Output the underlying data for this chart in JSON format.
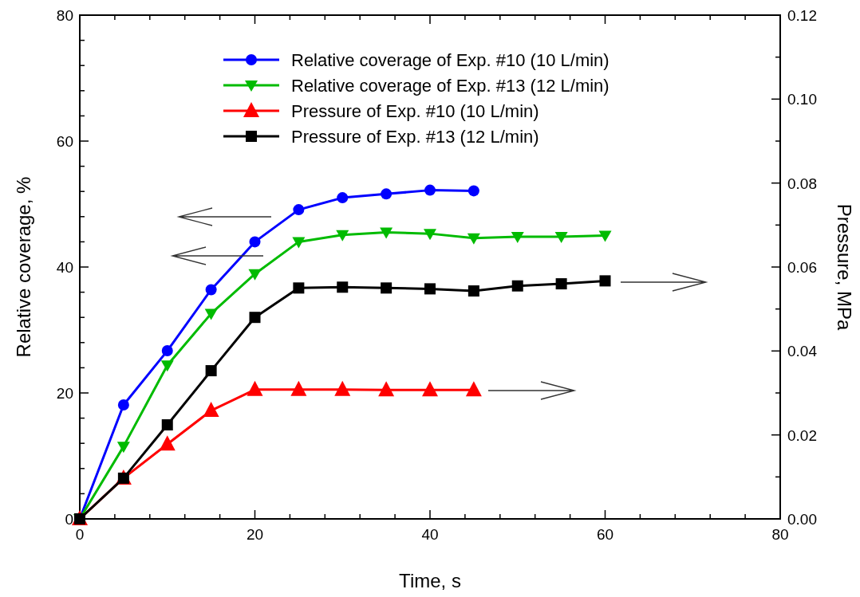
{
  "chart_data": {
    "type": "line",
    "xlabel": "Time, s",
    "ylabel": "Relative coverage, %",
    "y2label": "Pressure, MPa",
    "xlim": [
      0,
      80
    ],
    "xticks": [
      0,
      {
        "value": 4,
        "label": null
      },
      {
        "value": 8,
        "label": null
      },
      {
        "value": 12,
        "label": null
      },
      {
        "value": 16,
        "label": null
      },
      20,
      {
        "value": 24,
        "label": null
      },
      {
        "value": 28,
        "label": null
      },
      {
        "value": 32,
        "label": null
      },
      {
        "value": 36,
        "label": null
      },
      40,
      {
        "value": 44,
        "label": null
      },
      {
        "value": 48,
        "label": null
      },
      {
        "value": 52,
        "label": null
      },
      {
        "value": 56,
        "label": null
      },
      60,
      {
        "value": 64,
        "label": null
      },
      {
        "value": 68,
        "label": null
      },
      {
        "value": 72,
        "label": null
      },
      {
        "value": 76,
        "label": null
      },
      80
    ],
    "ylim": [
      0,
      80
    ],
    "yticks": [
      0,
      {
        "value": 4,
        "label": null
      },
      {
        "value": 8,
        "label": null
      },
      {
        "value": 12,
        "label": null
      },
      {
        "value": 16,
        "label": null
      },
      20,
      {
        "value": 24,
        "label": null
      },
      {
        "value": 28,
        "label": null
      },
      {
        "value": 32,
        "label": null
      },
      {
        "value": 36,
        "label": null
      },
      40,
      {
        "value": 44,
        "label": null
      },
      {
        "value": 48,
        "label": null
      },
      {
        "value": 52,
        "label": null
      },
      {
        "value": 56,
        "label": null
      },
      60,
      {
        "value": 64,
        "label": null
      },
      {
        "value": 68,
        "label": null
      },
      {
        "value": 72,
        "label": null
      },
      {
        "value": 76,
        "label": null
      },
      80
    ],
    "y2lim": [
      0,
      0.12
    ],
    "y2ticks": [
      {
        "value": 0,
        "label": "0.00"
      },
      {
        "value": 0.01,
        "label": null
      },
      {
        "value": 0.02,
        "label": "0.02"
      },
      {
        "value": 0.03,
        "label": null
      },
      {
        "value": 0.04,
        "label": "0.04"
      },
      {
        "value": 0.05,
        "label": null
      },
      {
        "value": 0.06,
        "label": "0.06"
      },
      {
        "value": 0.07,
        "label": null
      },
      {
        "value": 0.08,
        "label": "0.08"
      },
      {
        "value": 0.09,
        "label": null
      },
      {
        "value": 0.1,
        "label": "0.10"
      },
      {
        "value": 0.11,
        "label": null
      },
      {
        "value": 0.12,
        "label": "0.12"
      }
    ],
    "grid": false,
    "legend": "top",
    "line_style": "solid",
    "series": [
      {
        "name": "Relative coverage of Exp. #10 (10 L/min)",
        "color": "#0000ff",
        "marker": "circle",
        "x": [
          0,
          5,
          10,
          15,
          20,
          25,
          30,
          35,
          40,
          45
        ],
        "values": [
          0,
          18.1,
          26.7,
          36.4,
          44.0,
          49.1,
          51.0,
          51.6,
          52.2,
          52.1
        ]
      },
      {
        "name": "Relative coverage of Exp. #13 (12 L/min)",
        "color": "#00bb00",
        "marker": "triangle-down",
        "x": [
          0,
          5,
          10,
          15,
          20,
          25,
          30,
          35,
          40,
          45,
          50,
          55,
          60
        ],
        "values": [
          0,
          11.5,
          24.4,
          32.6,
          38.9,
          44.0,
          45.1,
          45.5,
          45.3,
          44.6,
          44.8,
          44.8,
          45.0
        ]
      },
      {
        "name": "Pressure of Exp. #10 (10 L/min)",
        "color": "#ff0000",
        "marker": "triangle",
        "axis": "y2",
        "x": [
          0,
          5,
          10,
          15,
          20,
          25,
          30,
          35,
          40,
          45
        ],
        "values": [
          0,
          0.0097,
          0.0178,
          0.0258,
          0.0308,
          0.0308,
          0.0308,
          0.0307,
          0.0307,
          0.0307
        ]
      },
      {
        "name": "Pressure of Exp. #13 (12 L/min)",
        "color": "#000000",
        "marker": "square",
        "axis": "y2",
        "x": [
          0,
          5,
          10,
          15,
          20,
          25,
          30,
          35,
          40,
          45,
          50,
          55,
          60
        ],
        "values": [
          0,
          0.0097,
          0.0224,
          0.0353,
          0.048,
          0.055,
          0.0552,
          0.055,
          0.0548,
          0.0543,
          0.0555,
          0.056,
          0.0567
        ]
      }
    ]
  }
}
